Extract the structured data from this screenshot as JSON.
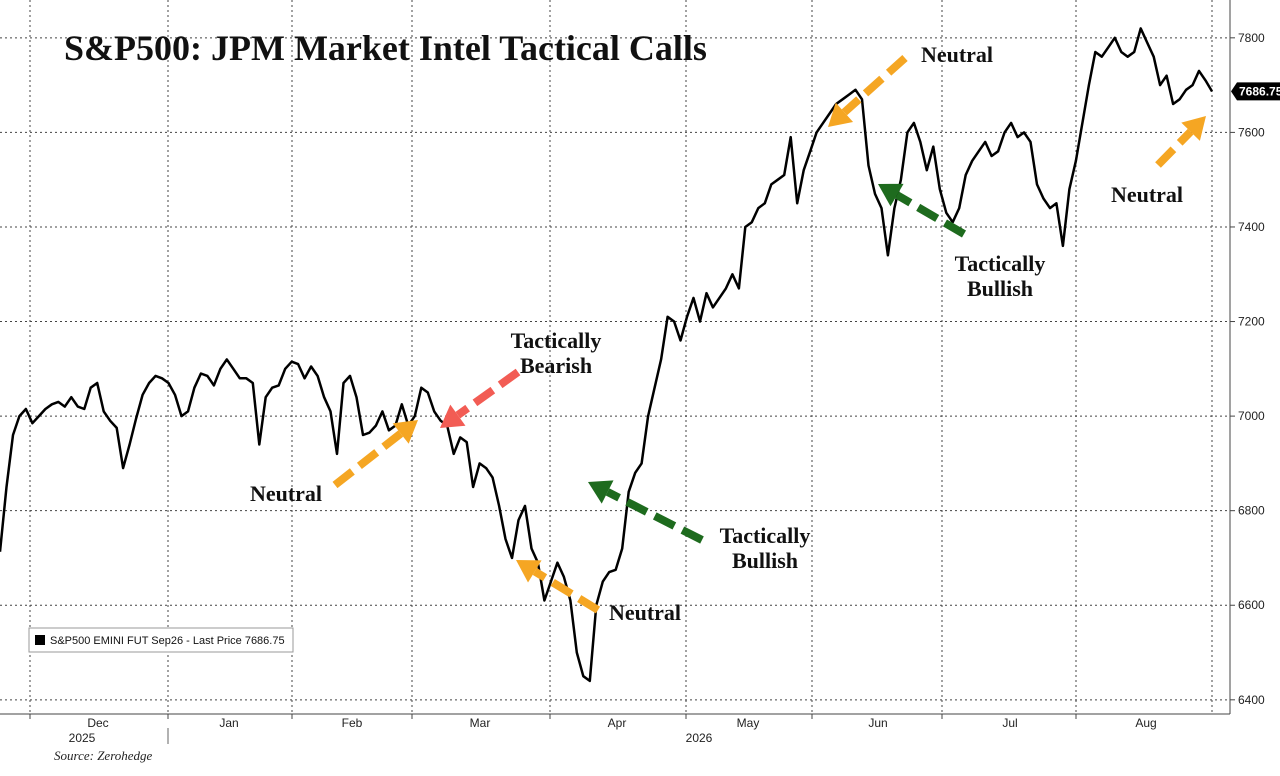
{
  "chart_data": {
    "type": "line",
    "title": "S&P500: JPM Market Intel Tactical Calls",
    "source": "Source: Zerohedge",
    "y_axis_side": "right",
    "ylim": [
      6370,
      7880
    ],
    "yticks": [
      6400,
      6600,
      6800,
      7000,
      7200,
      7400,
      7600,
      7800
    ],
    "grid": true,
    "x_month_labels": [
      "Dec",
      "Jan",
      "Feb",
      "Mar",
      "Apr",
      "May",
      "Jun",
      "Jul",
      "Aug"
    ],
    "x_year_labels": [
      "2025",
      "2026"
    ],
    "last_price_label": "7686.75",
    "legend": {
      "placement": "bottom-left",
      "text": "S&P500 EMINI FUT Sep26 - Last Price 7686.75"
    },
    "series": [
      {
        "name": "S&P500 EMINI FUT Sep26",
        "color": "#000000",
        "values": [
          6713,
          6850,
          6960,
          7000,
          7015,
          6985,
          7000,
          7015,
          7025,
          7030,
          7020,
          7040,
          7020,
          7015,
          7060,
          7070,
          7010,
          6990,
          6975,
          6890,
          6940,
          6995,
          7045,
          7070,
          7085,
          7080,
          7070,
          7045,
          7000,
          7010,
          7060,
          7090,
          7085,
          7065,
          7100,
          7120,
          7100,
          7080,
          7080,
          7070,
          6940,
          7040,
          7060,
          7065,
          7100,
          7115,
          7110,
          7080,
          7105,
          7085,
          7040,
          7010,
          6920,
          7070,
          7085,
          7040,
          6960,
          6965,
          6980,
          7010,
          6970,
          6980,
          7025,
          6980,
          7000,
          7060,
          7050,
          7010,
          6990,
          6980,
          6920,
          6955,
          6945,
          6850,
          6900,
          6890,
          6870,
          6810,
          6740,
          6700,
          6780,
          6810,
          6720,
          6690,
          6610,
          6650,
          6690,
          6660,
          6610,
          6500,
          6450,
          6440,
          6600,
          6650,
          6670,
          6675,
          6720,
          6840,
          6880,
          6900,
          7000,
          7060,
          7120,
          7210,
          7200,
          7160,
          7210,
          7250,
          7200,
          7260,
          7230,
          7250,
          7270,
          7300,
          7270,
          7400,
          7410,
          7440,
          7450,
          7490,
          7500,
          7510,
          7590,
          7450,
          7520,
          7560,
          7600,
          7620,
          7640,
          7660,
          7670,
          7680,
          7690,
          7670,
          7530,
          7470,
          7440,
          7340,
          7440,
          7500,
          7600,
          7620,
          7580,
          7520,
          7570,
          7480,
          7430,
          7410,
          7440,
          7510,
          7540,
          7560,
          7580,
          7550,
          7560,
          7600,
          7620,
          7590,
          7600,
          7580,
          7490,
          7460,
          7440,
          7450,
          7360,
          7480,
          7540,
          7620,
          7700,
          7770,
          7760,
          7780,
          7800,
          7770,
          7760,
          7770,
          7820,
          7790,
          7760,
          7700,
          7720,
          7660,
          7670,
          7690,
          7700,
          7730,
          7710,
          7686.75
        ]
      }
    ],
    "annotations": [
      {
        "text": "Neutral",
        "color": "#f5a623"
      },
      {
        "lines": [
          "Tactically",
          "Bearish"
        ],
        "color": "#f25c54"
      },
      {
        "text": "Neutral",
        "color": "#f5a623"
      },
      {
        "lines": [
          "Tactically",
          "Bullish"
        ],
        "color": "#1e6b1e"
      },
      {
        "text": "Neutral",
        "color": "#f5a623"
      },
      {
        "lines": [
          "Tactically",
          "Bullish"
        ],
        "color": "#1e6b1e"
      },
      {
        "text": "Neutral",
        "color": "#f5a623"
      }
    ]
  }
}
